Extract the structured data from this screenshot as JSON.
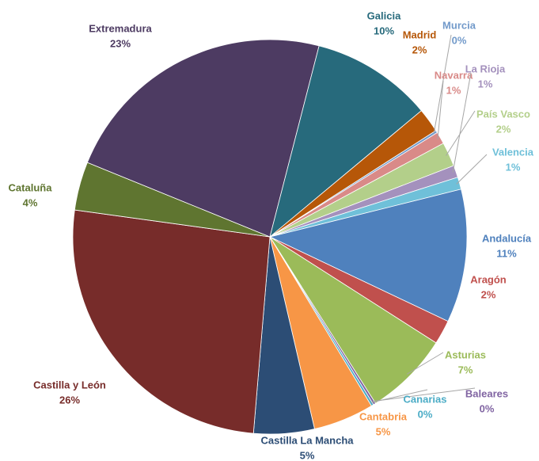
{
  "chart_data": {
    "type": "pie",
    "categories": [
      "Andalucía",
      "Aragón",
      "Asturias",
      "Baleares",
      "Canarias",
      "Cantabria",
      "Castilla La Mancha",
      "Castilla y León",
      "Cataluña",
      "Extremadura",
      "Galicia",
      "Madrid",
      "Murcia",
      "Navarra",
      "País Vasco",
      "La Rioja",
      "Valencia"
    ],
    "values": [
      11,
      2,
      7,
      0.2,
      0.2,
      5,
      5,
      26,
      4,
      23,
      10,
      2,
      0.2,
      1,
      2,
      1,
      1
    ],
    "value_labels": [
      "11%",
      "2%",
      "7%",
      "0%",
      "0%",
      "5%",
      "5%",
      "26%",
      "4%",
      "23%",
      "10%",
      "2%",
      "0%",
      "1%",
      "2%",
      "1%",
      "1%"
    ],
    "colors": [
      "#4f81bd",
      "#c0504d",
      "#9bbb59",
      "#8064a2",
      "#4bacc6",
      "#f79646",
      "#2c4d75",
      "#772c2a",
      "#5f7530",
      "#4d3b62",
      "#276a7c",
      "#b65708",
      "#729aca",
      "#d98a88",
      "#b3cf8a",
      "#a491bd",
      "#6fc0d9"
    ]
  }
}
